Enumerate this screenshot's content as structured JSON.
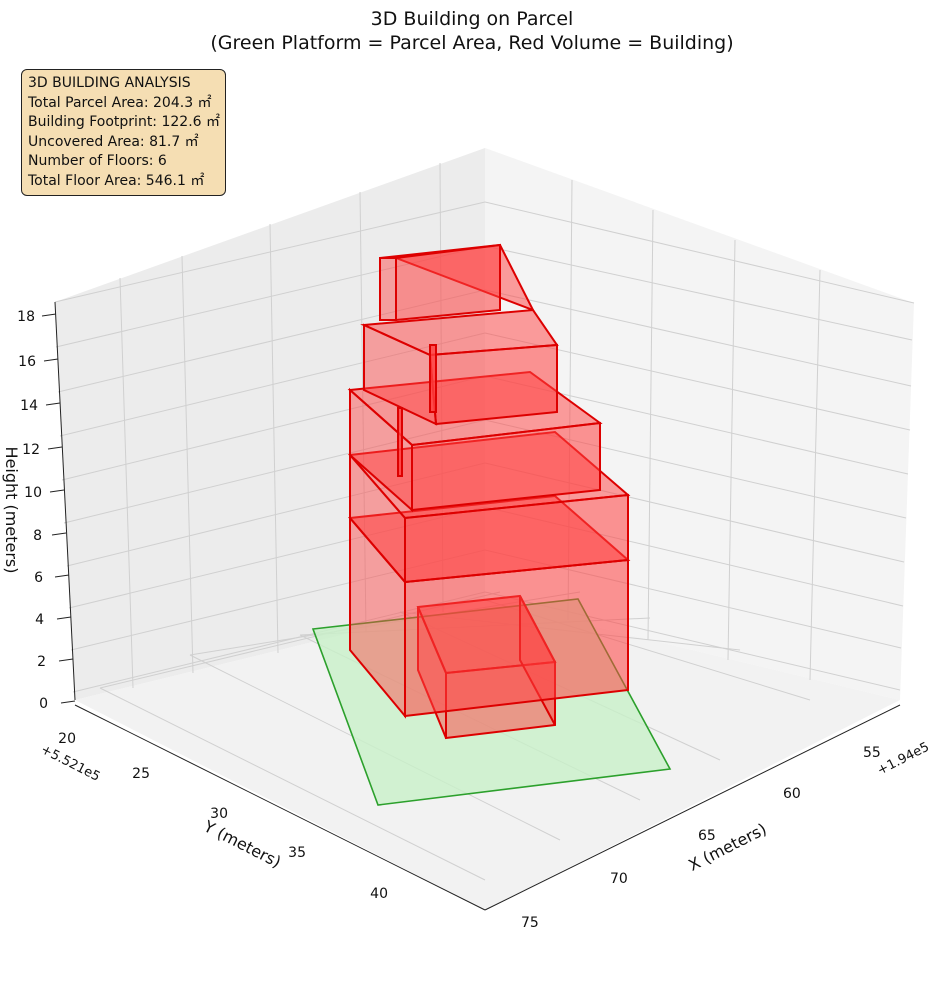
{
  "chart_data": {
    "type": "3d-bar",
    "title": "3D Building on Parcel",
    "subtitle": "(Green Platform = Parcel Area, Red Volume = Building)",
    "xlabel": "X (meters)",
    "ylabel": "Y (meters)",
    "zlabel": "Height (meters)",
    "x_offset_label": "+1.94e5",
    "y_offset_label": "+5.521e5",
    "x_ticks": [
      "55",
      "60",
      "65",
      "70",
      "75"
    ],
    "y_ticks": [
      "20",
      "25",
      "30",
      "35",
      "40"
    ],
    "z_ticks": [
      "0",
      "2",
      "4",
      "6",
      "8",
      "10",
      "12",
      "14",
      "16",
      "18"
    ],
    "xlim": [
      52,
      76
    ],
    "ylim": [
      18,
      44
    ],
    "zlim": [
      0,
      18
    ],
    "colors": {
      "parcel": "#c8f0c8",
      "parcel_edge": "#2ca02c",
      "building": "#ff0000",
      "building_edge": "#cc0000"
    },
    "info_box": [
      "3D BUILDING ANALYSIS",
      "Total Parcel Area: 204.3 ㎡",
      "Building Footprint: 122.6 ㎡",
      "Uncovered Area: 81.7 ㎡",
      "Number of Floors: 6",
      "Total Floor Area: 546.1 ㎡"
    ]
  }
}
